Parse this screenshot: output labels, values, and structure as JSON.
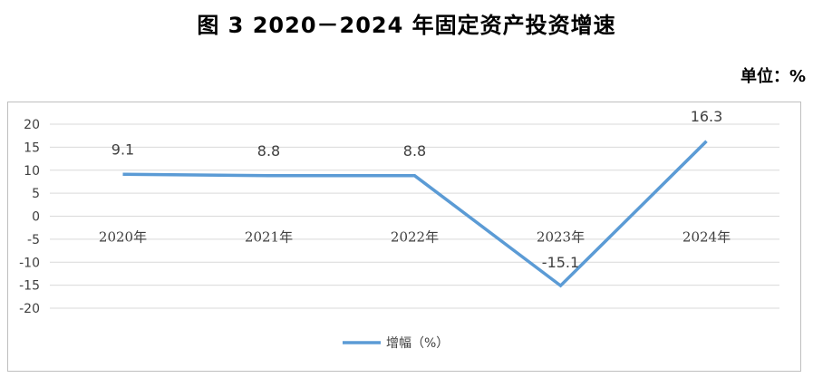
{
  "header": {
    "title": "图 3    2020－2024 年固定资产投资增速",
    "unit": "单位：%"
  },
  "colors": {
    "series": "#5b9bd5",
    "grid": "#d9d9d9"
  },
  "chart_data": {
    "type": "line",
    "categories": [
      "2020年",
      "2021年",
      "2022年",
      "2023年",
      "2024年"
    ],
    "series": [
      {
        "name": "增幅（%）",
        "values": [
          9.1,
          8.8,
          8.8,
          -15.1,
          16.3
        ]
      }
    ],
    "data_labels": [
      "9.1",
      "8.8",
      "8.8",
      "-15.1",
      "16.3"
    ],
    "yticks": [
      "20",
      "15",
      "10",
      "5",
      "0",
      "-5",
      "-10",
      "-15",
      "-20"
    ],
    "ylim": [
      -20,
      20
    ],
    "grid": true,
    "legend_position": "bottom"
  }
}
